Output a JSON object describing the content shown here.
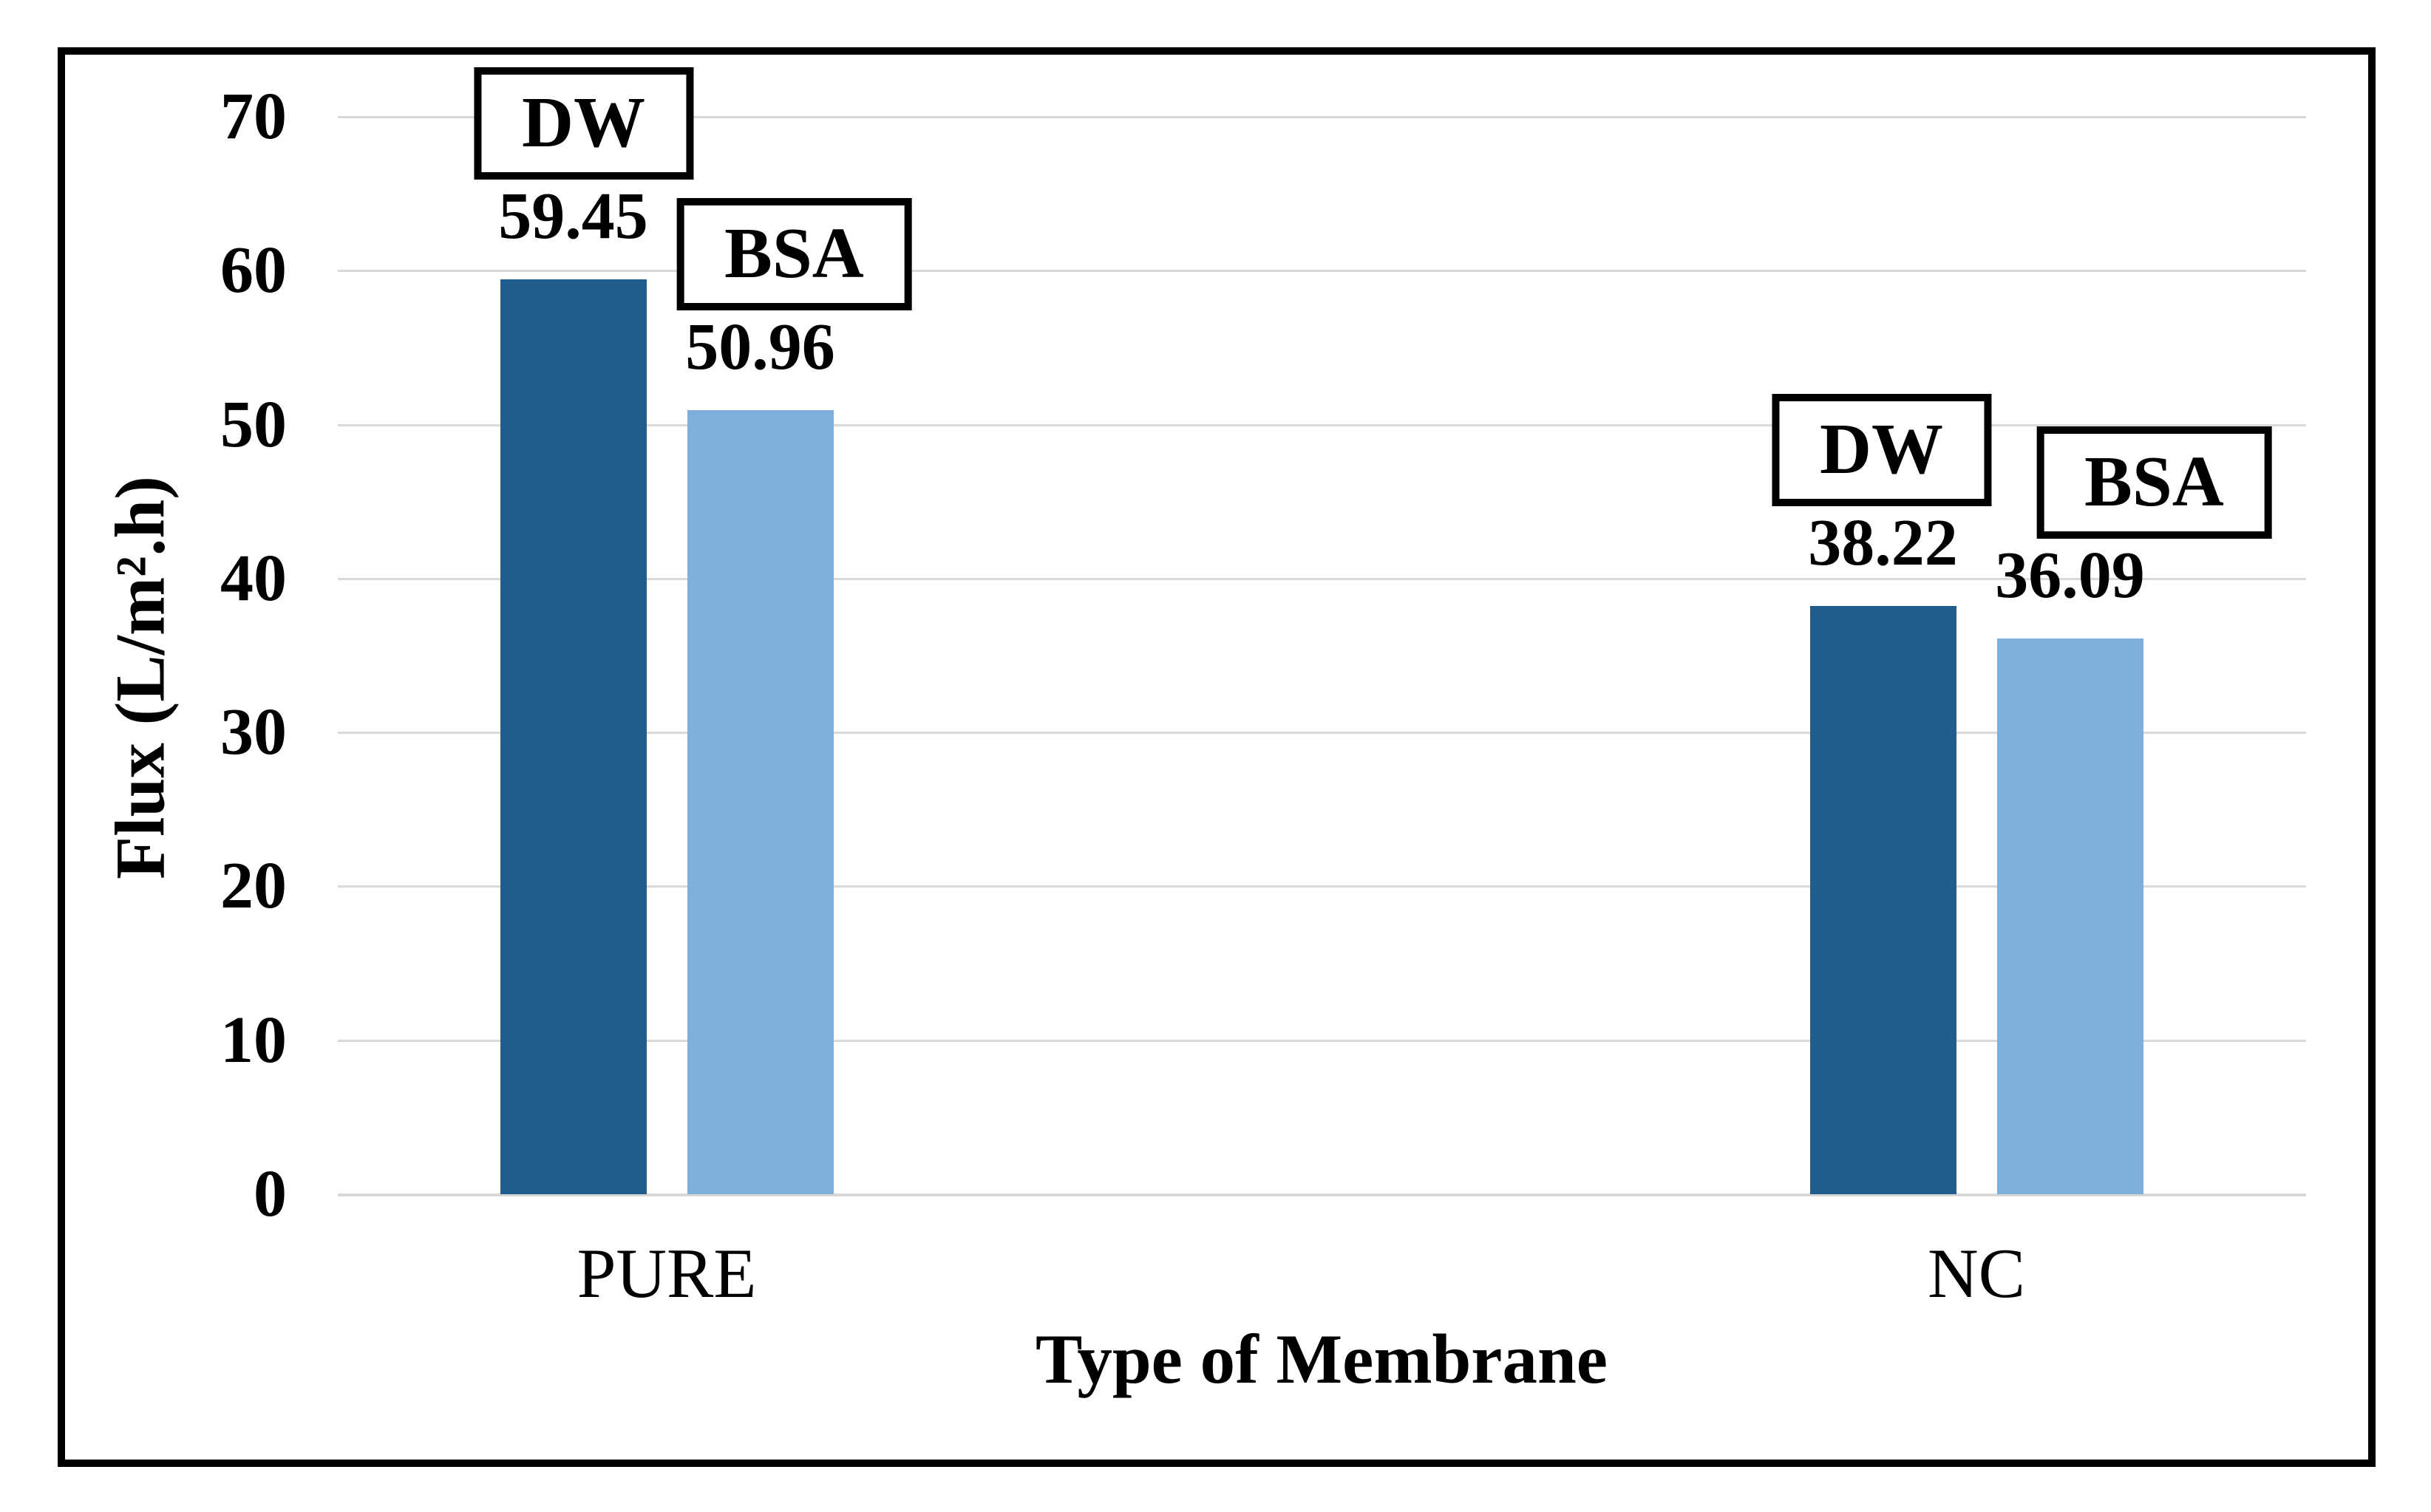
{
  "chart_data": {
    "type": "bar",
    "title": "",
    "categories": [
      "PURE",
      "NC"
    ],
    "series": [
      {
        "name": "DW",
        "color": "#215D8F",
        "values": [
          59.45,
          38.22
        ]
      },
      {
        "name": "BSA",
        "color": "#7FAEDB",
        "values": [
          50.96,
          36.09
        ]
      }
    ],
    "data_labels": [
      "59.45",
      "50.96",
      "38.22",
      "36.09"
    ],
    "xlabel": "Type of Membrane",
    "ylabel": "Flux (L/m².h)",
    "ylim": [
      0,
      70
    ],
    "yticks": [
      0,
      10,
      20,
      30,
      40,
      50,
      60,
      70
    ],
    "grid": true,
    "legend_position": "boxed-labels-above-bars"
  },
  "colors": {
    "background": "#FFFFFF",
    "frame_border": "#000000",
    "gridline": "#D9D9D9",
    "axis_line": "#D9D9D9",
    "text": "#000000",
    "label_box_border": "#000000",
    "label_box_background": "#FFFFFF"
  }
}
